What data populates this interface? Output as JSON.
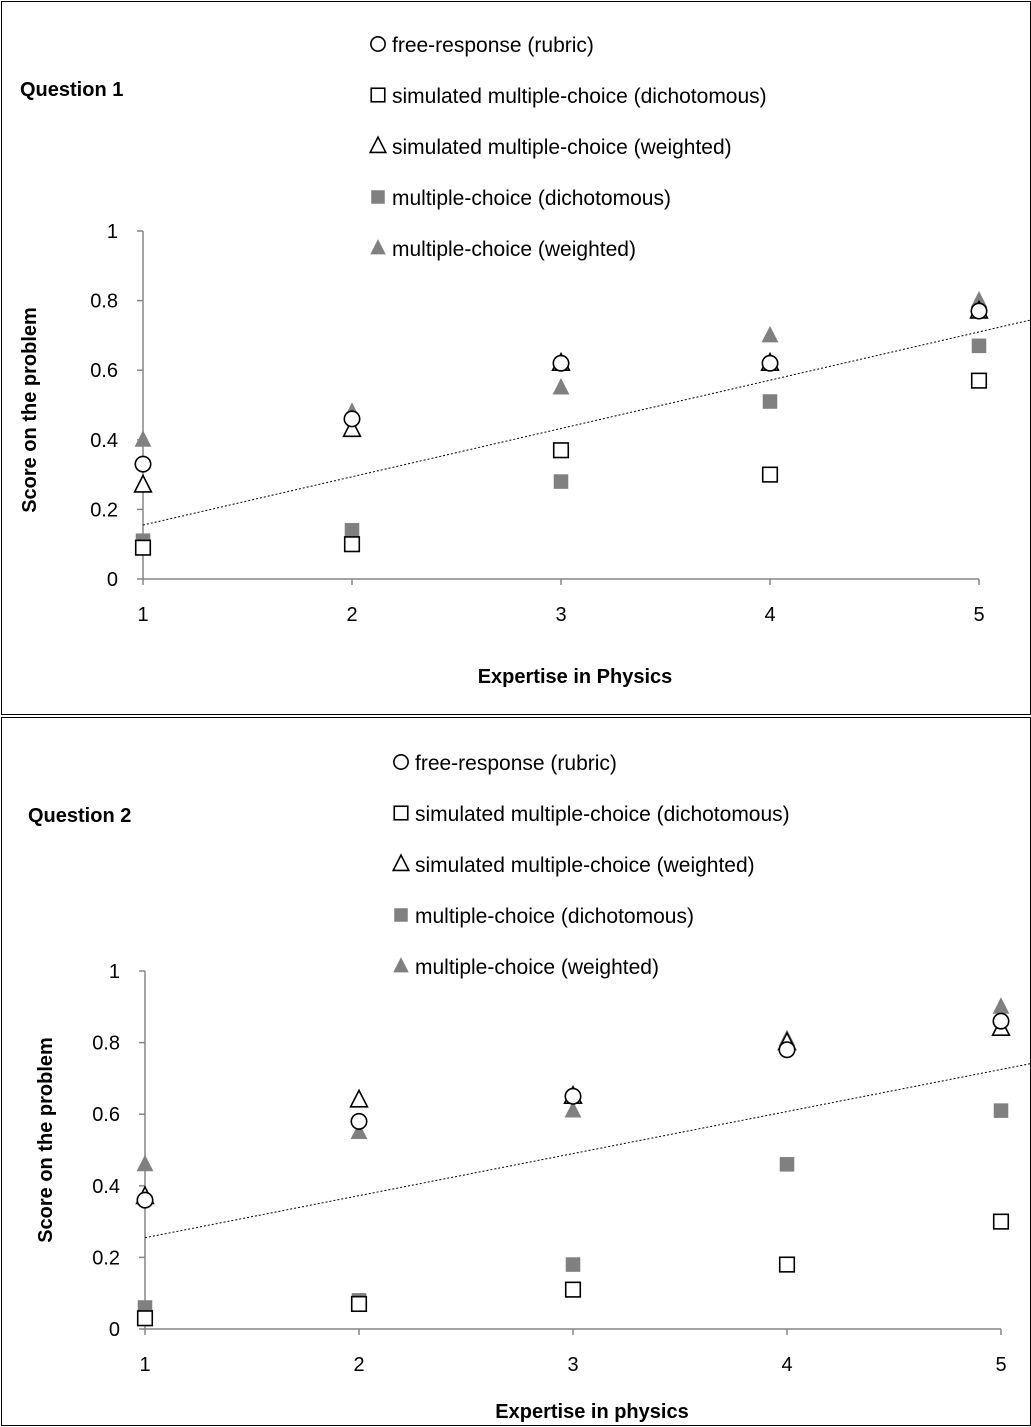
{
  "chart_data": [
    {
      "type": "scatter",
      "title": "Question 1",
      "xlabel": "Expertise in Physics",
      "ylabel": "Score on the problem",
      "xlim": [
        1,
        5
      ],
      "ylim": [
        0,
        1
      ],
      "xticks": [
        "1",
        "2",
        "3",
        "4",
        "5"
      ],
      "yticks": [
        "0",
        "0.2",
        "0.4",
        "0.6",
        "0.8",
        "1"
      ],
      "legend_position": "top-center",
      "series": [
        {
          "name": "free-response (rubric)",
          "marker": "circle-open",
          "color": "#000000",
          "x": [
            1,
            2,
            3,
            4,
            5
          ],
          "y": [
            0.33,
            0.46,
            0.62,
            0.62,
            0.77
          ]
        },
        {
          "name": "simulated multiple-choice (dichotomous)",
          "marker": "square-open",
          "color": "#000000",
          "x": [
            1,
            2,
            3,
            4,
            5
          ],
          "y": [
            0.09,
            0.1,
            0.37,
            0.3,
            0.57
          ]
        },
        {
          "name": "simulated multiple-choice (weighted)",
          "marker": "triangle-open",
          "color": "#000000",
          "x": [
            1,
            2,
            3,
            4,
            5
          ],
          "y": [
            0.27,
            0.43,
            0.62,
            0.62,
            0.77
          ]
        },
        {
          "name": "multiple-choice (dichotomous)",
          "marker": "square-filled",
          "color": "#808080",
          "x": [
            1,
            2,
            3,
            4,
            5
          ],
          "y": [
            0.11,
            0.14,
            0.28,
            0.51,
            0.67
          ]
        },
        {
          "name": "multiple-choice (weighted)",
          "marker": "triangle-filled",
          "color": "#808080",
          "x": [
            1,
            2,
            3,
            4,
            5
          ],
          "y": [
            0.4,
            0.48,
            0.55,
            0.7,
            0.8
          ]
        }
      ],
      "trendline": {
        "style": "dotted",
        "y_at_xmin": 0.155,
        "y_at_xmax": 0.71
      }
    },
    {
      "type": "scatter",
      "title": "Question 2",
      "xlabel": "Expertise in physics",
      "ylabel": "Score on the problem",
      "xlim": [
        1,
        5
      ],
      "ylim": [
        0,
        1
      ],
      "xticks": [
        "1",
        "2",
        "3",
        "4",
        "5"
      ],
      "yticks": [
        "0",
        "0.2",
        "0.4",
        "0.6",
        "0.8",
        "1"
      ],
      "legend_position": "top-center",
      "series": [
        {
          "name": "free-response (rubric)",
          "marker": "circle-open",
          "color": "#000000",
          "x": [
            1,
            2,
            3,
            4,
            5
          ],
          "y": [
            0.36,
            0.58,
            0.65,
            0.78,
            0.86
          ]
        },
        {
          "name": "simulated multiple-choice (dichotomous)",
          "marker": "square-open",
          "color": "#000000",
          "x": [
            1,
            2,
            3,
            4,
            5
          ],
          "y": [
            0.03,
            0.07,
            0.11,
            0.18,
            0.3
          ]
        },
        {
          "name": "simulated multiple-choice (weighted)",
          "marker": "triangle-open",
          "color": "#000000",
          "x": [
            1,
            2,
            3,
            4,
            5
          ],
          "y": [
            0.37,
            0.64,
            0.65,
            0.8,
            0.84
          ]
        },
        {
          "name": "multiple-choice (dichotomous)",
          "marker": "square-filled",
          "color": "#808080",
          "x": [
            1,
            2,
            3,
            4,
            5
          ],
          "y": [
            0.06,
            0.08,
            0.18,
            0.46,
            0.61
          ]
        },
        {
          "name": "multiple-choice (weighted)",
          "marker": "triangle-filled",
          "color": "#808080",
          "x": [
            1,
            2,
            3,
            4,
            5
          ],
          "y": [
            0.46,
            0.55,
            0.61,
            0.81,
            0.9
          ]
        }
      ],
      "trendline": {
        "style": "dotted",
        "y_at_xmin": 0.255,
        "y_at_xmax": 0.725
      }
    }
  ]
}
